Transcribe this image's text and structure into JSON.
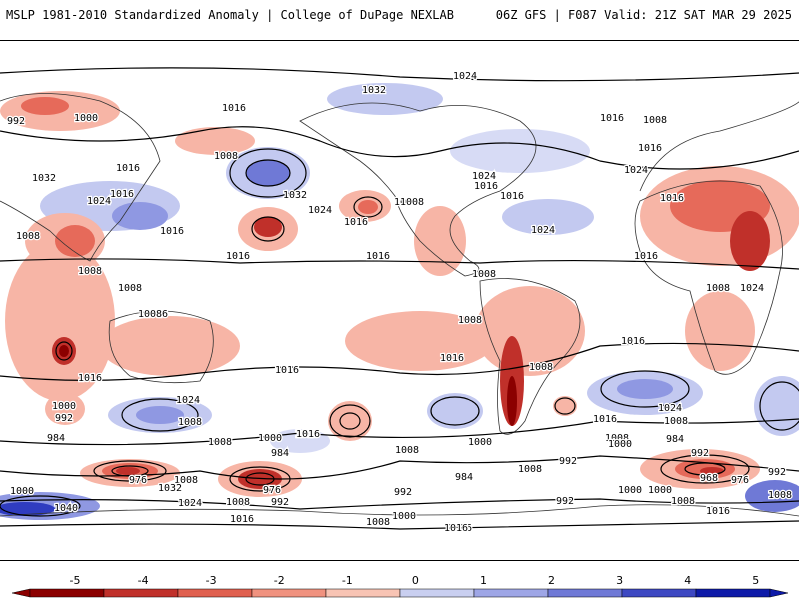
{
  "header": {
    "title": "MSLP 1981-2010 Standardized Anomaly | College of DuPage NEXLAB",
    "run_info": "06Z GFS | F087 Valid: 21Z SAT MAR 29 2025"
  },
  "colorbar": {
    "ticks": [
      "-5",
      "-4",
      "-3",
      "-2",
      "-1",
      "0",
      "1",
      "2",
      "3",
      "4",
      "5"
    ],
    "colors": [
      "#8b0000",
      "#c0302a",
      "#e0604f",
      "#f0927f",
      "#f8c4b4",
      "#ffffff",
      "#c9cff0",
      "#9ea6e6",
      "#6f79d6",
      "#3d48c2",
      "#0d1aa8"
    ]
  },
  "colors": {
    "negative_strong": "#b81717",
    "negative_mid": "#e66a5a",
    "negative_light": "#f7b5a6",
    "positive_light": "#c3c9f0",
    "positive_mid": "#8f98e2",
    "positive_strong": "#2f3cc0",
    "contour": "#000000",
    "coastline": "#333333"
  },
  "isobar_labels": [
    "1024",
    "1032",
    "1016",
    "1000",
    "992",
    "1008",
    "1032",
    "1016",
    "1024",
    "1016",
    "1024",
    "1032",
    "1024",
    "1008",
    "1016",
    "1016",
    "1008",
    "1016",
    "1016",
    "1008",
    "1016",
    "1024",
    "1016",
    "1016",
    "1008",
    "1016",
    "1008",
    "1008",
    "1024",
    "1016",
    "1008",
    "1008",
    "1016",
    "1008",
    "1024",
    "1016",
    "1008",
    "1008",
    "1016",
    "1016",
    "1016",
    "1008",
    "1008",
    "1016",
    "1000",
    "992",
    "1024",
    "1016",
    "1016",
    "1008",
    "1024",
    "1008",
    "984",
    "1000",
    "1008",
    "1000",
    "1016",
    "1008",
    "1000",
    "992",
    "1000",
    "1008",
    "1016",
    "984",
    "992",
    "976",
    "1008",
    "1032",
    "984",
    "976",
    "992",
    "1024",
    "1000",
    "1016",
    "1008",
    "1000",
    "1040",
    "1000",
    "992",
    "984",
    "992",
    "1000",
    "1008",
    "1016",
    "984",
    "968",
    "976",
    "992",
    "1008",
    "1016",
    "1016"
  ]
}
